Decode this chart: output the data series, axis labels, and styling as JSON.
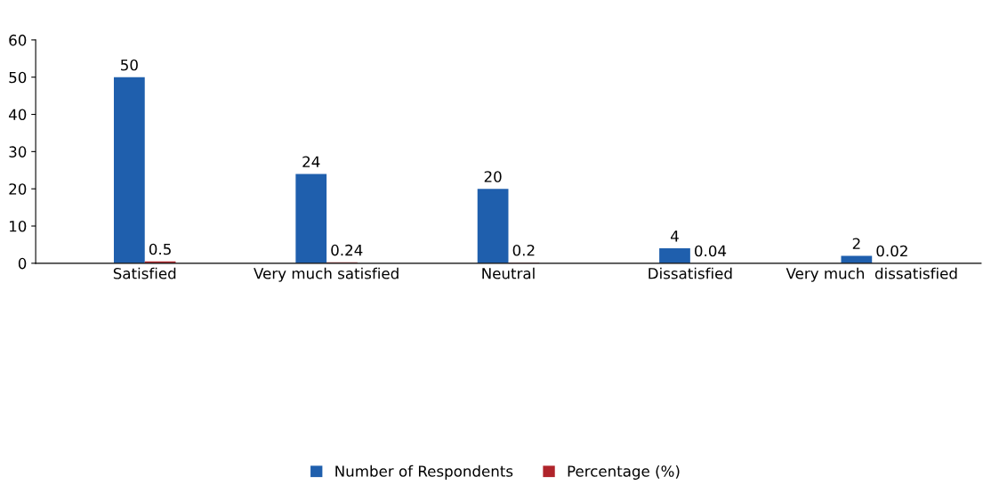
{
  "chart_data": {
    "type": "bar",
    "categories": [
      "Satisfied",
      "Very much satisfied",
      "Neutral",
      "Dissatisfied",
      "Very much  dissatisfied"
    ],
    "series": [
      {
        "name": "Number of Respondents",
        "color": "#1f5fad",
        "values": [
          50,
          24,
          20,
          4,
          2
        ]
      },
      {
        "name": "Percentage (%)",
        "color": "#b0242b",
        "values": [
          0.5,
          0.24,
          0.2,
          0.04,
          0.02
        ]
      }
    ],
    "ylim": [
      0,
      60
    ],
    "yticks": [
      0,
      10,
      20,
      30,
      40,
      50,
      60
    ],
    "data_labels": true,
    "grid": false,
    "legend": "bottom"
  }
}
